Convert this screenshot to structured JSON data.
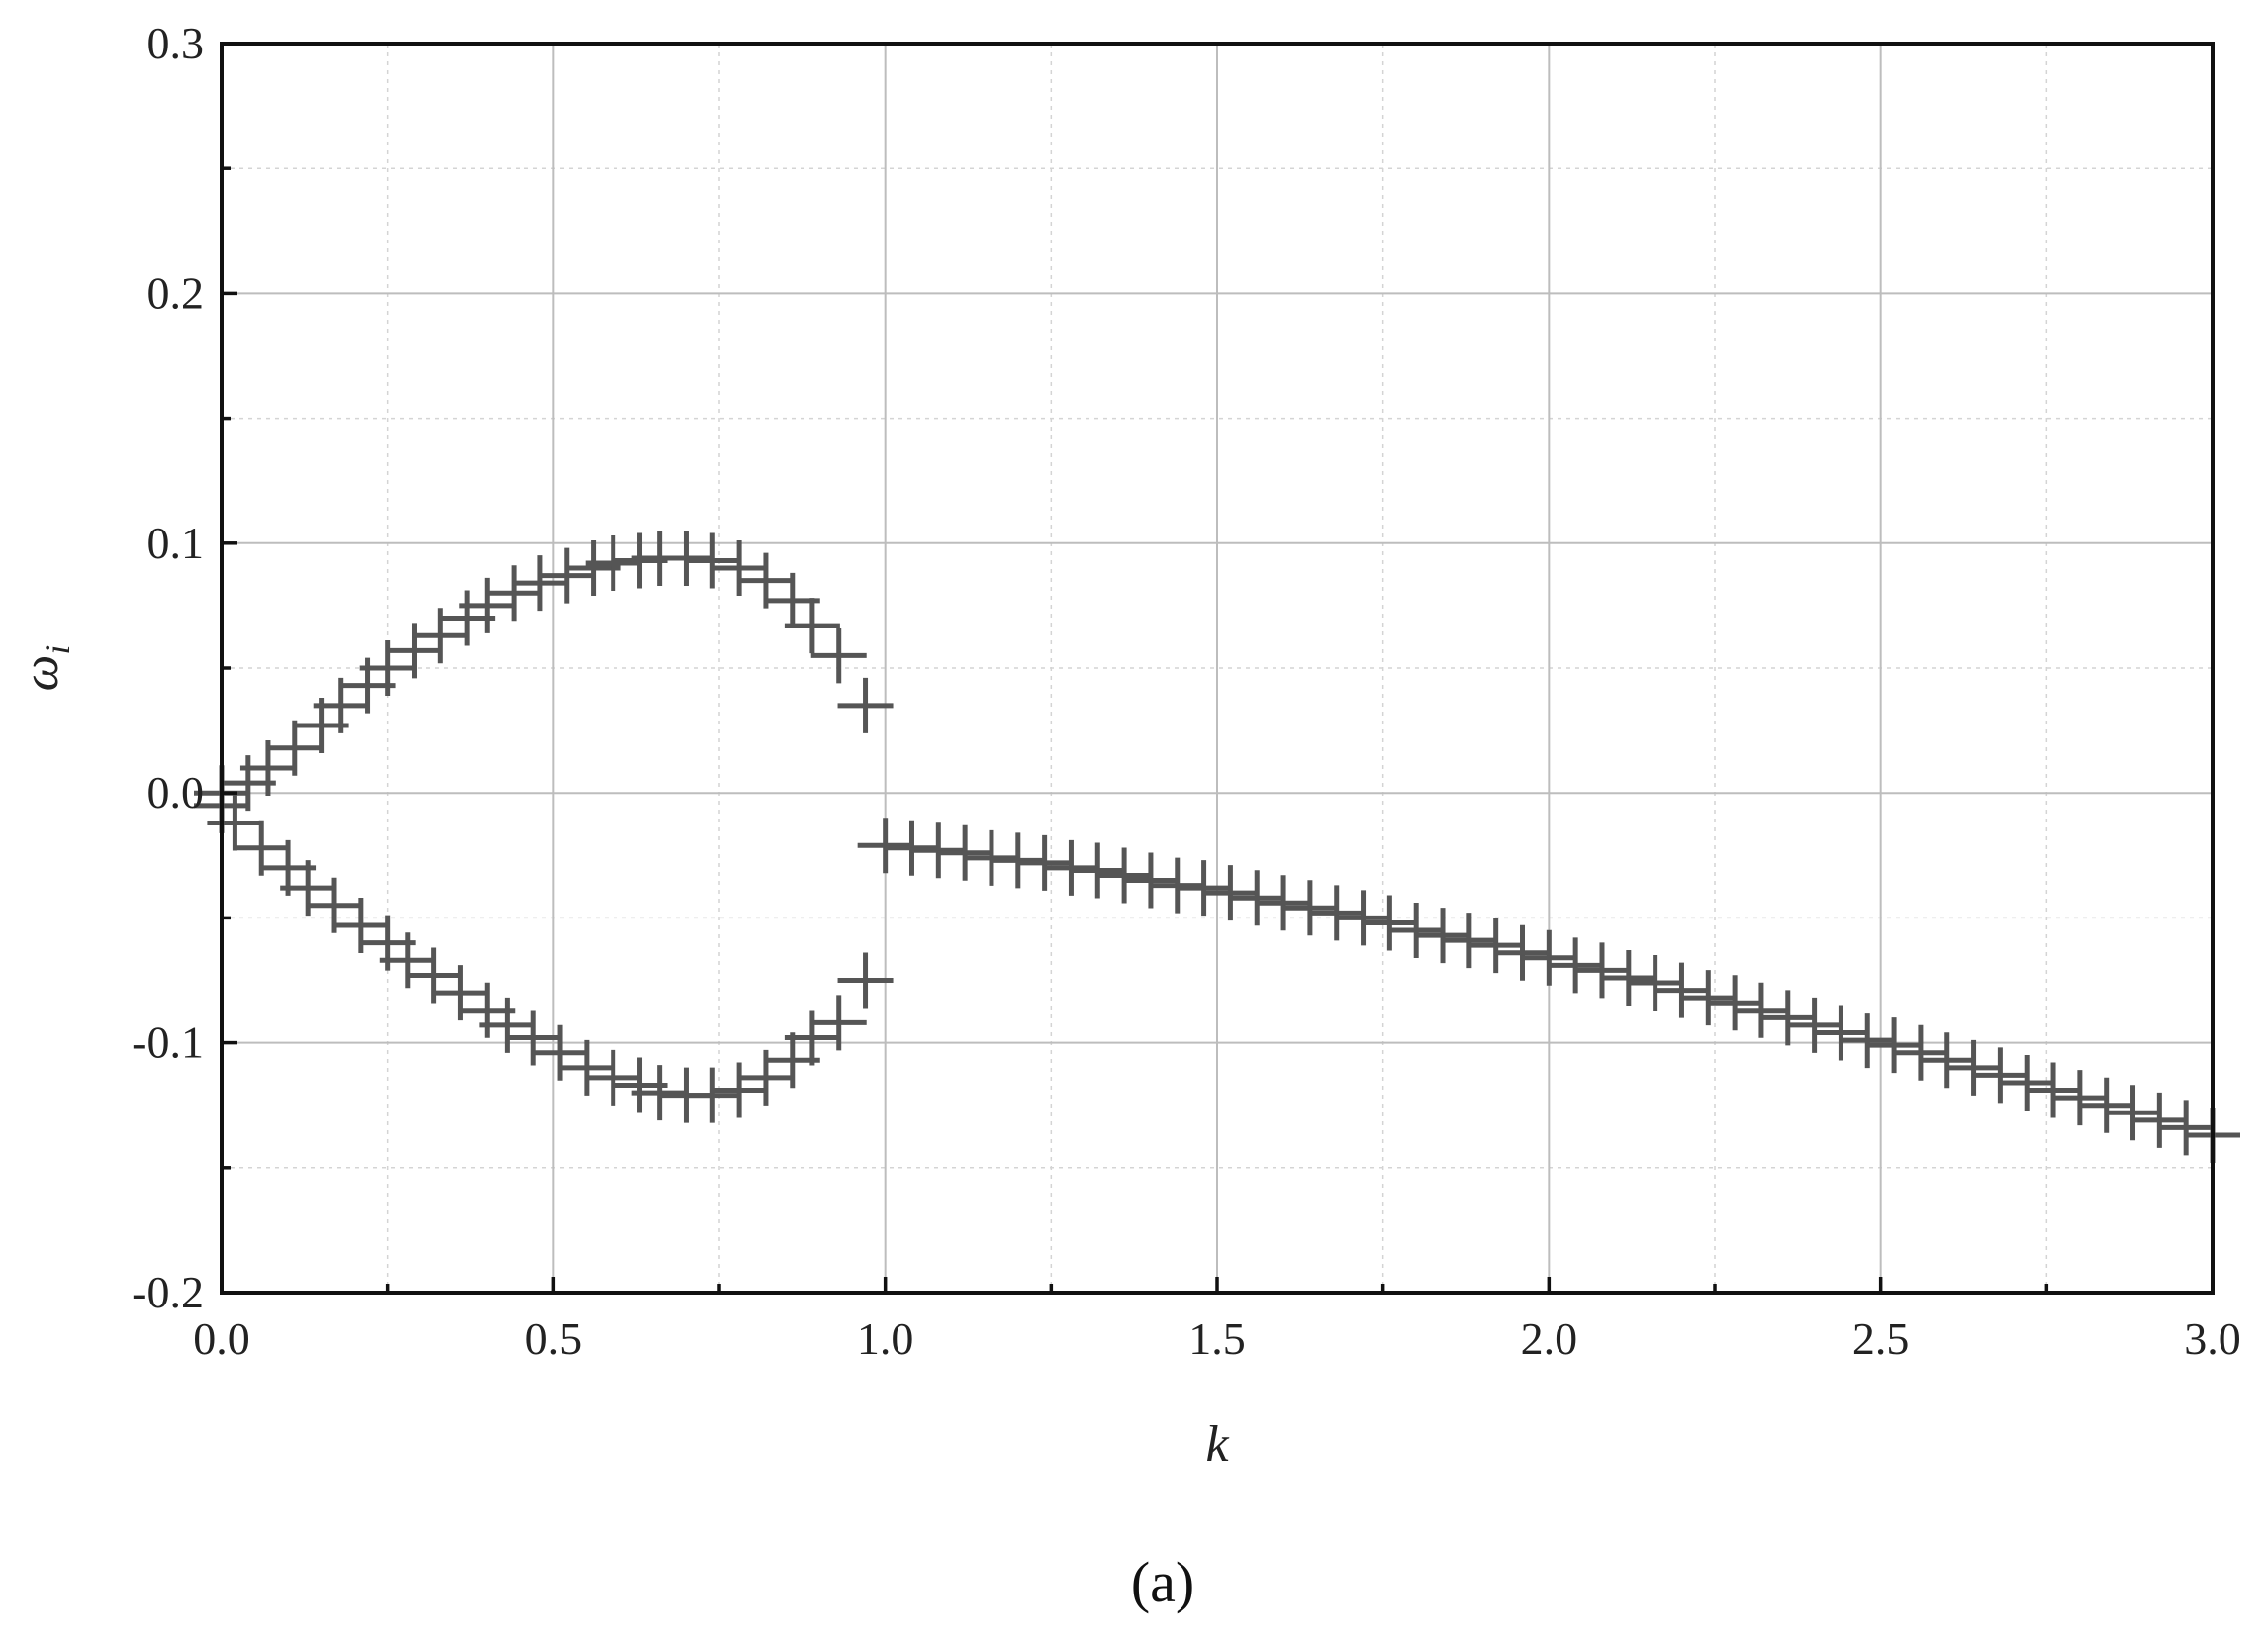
{
  "chart_data": {
    "type": "scatter",
    "title": "",
    "xlabel": "k",
    "ylabel": "ω",
    "ylabel_subscript": "i",
    "panel_label": "(a)",
    "xlim": [
      0.0,
      3.0
    ],
    "ylim": [
      -0.2,
      0.3
    ],
    "x_major_ticks": [
      0.0,
      0.5,
      1.0,
      1.5,
      2.0,
      2.5,
      3.0
    ],
    "x_tick_labels": [
      "0.0",
      "0.5",
      "1.0",
      "1.5",
      "2.0",
      "2.5",
      "3.0"
    ],
    "y_major_ticks": [
      -0.2,
      -0.1,
      0.0,
      0.1,
      0.2,
      0.3
    ],
    "y_tick_labels": [
      "-0.2",
      "-0.1",
      "0.0",
      "0.1",
      "0.2",
      "0.3"
    ],
    "x_minor_step": 0.25,
    "y_minor_step": 0.05,
    "grid": true,
    "marker": "plus",
    "marker_color": "#555555",
    "series": [
      {
        "name": "",
        "points": [
          [
            0.0,
            0.0
          ],
          [
            0.04,
            0.004
          ],
          [
            0.07,
            0.01
          ],
          [
            0.11,
            0.018
          ],
          [
            0.15,
            0.027
          ],
          [
            0.18,
            0.035
          ],
          [
            0.22,
            0.043
          ],
          [
            0.25,
            0.05
          ],
          [
            0.29,
            0.057
          ],
          [
            0.33,
            0.063
          ],
          [
            0.37,
            0.07
          ],
          [
            0.4,
            0.075
          ],
          [
            0.44,
            0.08
          ],
          [
            0.48,
            0.084
          ],
          [
            0.52,
            0.087
          ],
          [
            0.56,
            0.09
          ],
          [
            0.59,
            0.092
          ],
          [
            0.63,
            0.093
          ],
          [
            0.66,
            0.094
          ],
          [
            0.7,
            0.094
          ],
          [
            0.74,
            0.093
          ],
          [
            0.78,
            0.09
          ],
          [
            0.82,
            0.085
          ],
          [
            0.86,
            0.077
          ],
          [
            0.89,
            0.067
          ],
          [
            0.93,
            0.055
          ],
          [
            0.97,
            0.035
          ]
        ]
      },
      {
        "name": "",
        "points": [
          [
            0.0,
            -0.005
          ],
          [
            0.02,
            -0.012
          ],
          [
            0.06,
            -0.022
          ],
          [
            0.1,
            -0.03
          ],
          [
            0.13,
            -0.038
          ],
          [
            0.17,
            -0.045
          ],
          [
            0.21,
            -0.053
          ],
          [
            0.25,
            -0.06
          ],
          [
            0.28,
            -0.067
          ],
          [
            0.32,
            -0.073
          ],
          [
            0.36,
            -0.08
          ],
          [
            0.4,
            -0.087
          ],
          [
            0.43,
            -0.093
          ],
          [
            0.47,
            -0.098
          ],
          [
            0.51,
            -0.104
          ],
          [
            0.55,
            -0.11
          ],
          [
            0.59,
            -0.114
          ],
          [
            0.63,
            -0.117
          ],
          [
            0.66,
            -0.12
          ],
          [
            0.7,
            -0.121
          ],
          [
            0.74,
            -0.121
          ],
          [
            0.78,
            -0.119
          ],
          [
            0.82,
            -0.114
          ],
          [
            0.86,
            -0.107
          ],
          [
            0.89,
            -0.098
          ],
          [
            0.93,
            -0.092
          ],
          [
            0.97,
            -0.075
          ]
        ]
      },
      {
        "name": "",
        "points": [
          [
            1.0,
            -0.021
          ],
          [
            1.04,
            -0.022
          ],
          [
            1.08,
            -0.023
          ],
          [
            1.12,
            -0.024
          ],
          [
            1.16,
            -0.026
          ],
          [
            1.2,
            -0.027
          ],
          [
            1.24,
            -0.028
          ],
          [
            1.28,
            -0.03
          ],
          [
            1.32,
            -0.031
          ],
          [
            1.36,
            -0.033
          ],
          [
            1.4,
            -0.035
          ],
          [
            1.44,
            -0.037
          ],
          [
            1.48,
            -0.038
          ],
          [
            1.52,
            -0.04
          ],
          [
            1.56,
            -0.042
          ],
          [
            1.6,
            -0.044
          ],
          [
            1.64,
            -0.046
          ],
          [
            1.68,
            -0.048
          ],
          [
            1.72,
            -0.05
          ],
          [
            1.76,
            -0.052
          ],
          [
            1.8,
            -0.055
          ],
          [
            1.84,
            -0.057
          ],
          [
            1.88,
            -0.059
          ],
          [
            1.92,
            -0.061
          ],
          [
            1.96,
            -0.064
          ],
          [
            2.0,
            -0.066
          ],
          [
            2.04,
            -0.069
          ],
          [
            2.08,
            -0.071
          ],
          [
            2.12,
            -0.074
          ],
          [
            2.16,
            -0.076
          ],
          [
            2.2,
            -0.079
          ],
          [
            2.24,
            -0.082
          ],
          [
            2.28,
            -0.084
          ],
          [
            2.32,
            -0.087
          ],
          [
            2.36,
            -0.09
          ],
          [
            2.4,
            -0.093
          ],
          [
            2.44,
            -0.096
          ],
          [
            2.48,
            -0.099
          ],
          [
            2.52,
            -0.101
          ],
          [
            2.56,
            -0.104
          ],
          [
            2.6,
            -0.107
          ],
          [
            2.64,
            -0.11
          ],
          [
            2.68,
            -0.113
          ],
          [
            2.72,
            -0.116
          ],
          [
            2.76,
            -0.119
          ],
          [
            2.8,
            -0.122
          ],
          [
            2.84,
            -0.125
          ],
          [
            2.88,
            -0.128
          ],
          [
            2.92,
            -0.131
          ],
          [
            2.96,
            -0.134
          ],
          [
            3.0,
            -0.137
          ]
        ]
      }
    ]
  }
}
